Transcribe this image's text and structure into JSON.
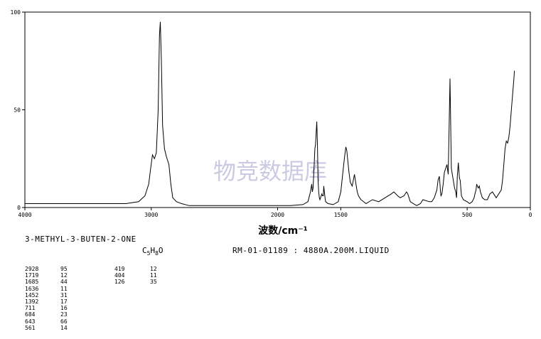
{
  "chart_data": {
    "type": "line",
    "title": "",
    "xlabel": "波数/cm⁻¹",
    "ylabel": "",
    "xlim": [
      4000,
      0
    ],
    "ylim": [
      0,
      100
    ],
    "x_ticks": [
      "4000",
      "3000",
      "2000",
      "1500",
      "500",
      "0"
    ],
    "y_ticks": [
      "100",
      "50",
      "0"
    ],
    "watermark": "物竞数据库",
    "series": [
      {
        "x": [
          4000,
          3200,
          3100,
          3050,
          3020,
          3005,
          2990,
          2975,
          2960,
          2945,
          2935,
          2928,
          2920,
          2910,
          2895,
          2880,
          2860,
          2845,
          2830,
          2800,
          2760,
          2700,
          2500,
          2200,
          1900,
          1800,
          1760,
          1740,
          1730,
          1725,
          1719,
          1712,
          1705,
          1700,
          1690,
          1685,
          1680,
          1675,
          1670,
          1665,
          1660,
          1655,
          1650,
          1645,
          1638,
          1635,
          1630,
          1625,
          1620,
          1600,
          1560,
          1520,
          1500,
          1485,
          1470,
          1460,
          1452,
          1445,
          1435,
          1425,
          1410,
          1392,
          1380,
          1370,
          1360,
          1350,
          1340,
          1300,
          1250,
          1200,
          1150,
          1100,
          1080,
          1050,
          1030,
          1000,
          980,
          970,
          960,
          950,
          900,
          870,
          850,
          800,
          780,
          760,
          740,
          730,
          720,
          715,
          711,
          707,
          700,
          690,
          680,
          660,
          650,
          643,
          636,
          625,
          600,
          590,
          584,
          578,
          570,
          561,
          555,
          545,
          530,
          500,
          480,
          460,
          445,
          438,
          430,
          425,
          419,
          412,
          404,
          395,
          380,
          360,
          340,
          320,
          300,
          290,
          270,
          250,
          230,
          220,
          210,
          200,
          190,
          180,
          170,
          160,
          150,
          140,
          130,
          126
        ],
        "y": [
          2,
          2,
          3,
          6,
          12,
          20,
          27,
          25,
          28,
          50,
          88,
          95,
          75,
          42,
          30,
          26,
          22,
          12,
          5,
          3,
          2,
          1,
          1,
          1,
          1,
          1.5,
          3,
          8,
          12,
          8,
          10,
          20,
          30,
          32,
          44,
          33,
          14,
          8,
          5,
          4,
          5,
          6,
          7,
          6,
          6,
          11,
          8,
          5,
          3,
          2,
          1.5,
          3,
          8,
          17,
          26,
          31,
          29,
          24,
          18,
          13,
          11,
          17,
          12,
          8,
          6,
          5,
          4,
          2,
          4,
          3,
          5,
          7,
          8,
          6,
          5,
          6,
          8,
          7,
          5,
          3,
          1,
          2,
          4,
          3,
          3,
          5,
          9,
          14,
          16,
          12,
          8,
          6,
          7,
          12,
          18,
          22,
          17,
          40,
          66,
          20,
          10,
          8,
          5,
          16,
          23,
          15,
          14,
          6,
          4,
          3,
          2,
          3,
          5,
          7,
          9,
          12,
          11,
          10,
          11,
          8,
          5,
          4,
          4,
          7,
          8,
          7,
          5,
          7,
          9,
          14,
          22,
          30,
          34,
          33,
          36,
          42,
          50,
          58,
          66,
          70
        ]
      }
    ]
  },
  "compound_name": "3-METHYL-3-BUTEN-2-ONE",
  "formula": {
    "c": "C",
    "c_n": "5",
    "h": "H",
    "h_n": "8",
    "o": "O"
  },
  "sample_info": "RM-01-01189 : 4880A.200M.LIQUID",
  "peak_table_1": [
    {
      "wn": "2928",
      "i": "95"
    },
    {
      "wn": "1719",
      "i": "12"
    },
    {
      "wn": "1685",
      "i": "44"
    },
    {
      "wn": "1636",
      "i": "11"
    },
    {
      "wn": "1452",
      "i": "31"
    },
    {
      "wn": "1392",
      "i": "17"
    },
    {
      "wn": "711",
      "i": "16"
    },
    {
      "wn": "684",
      "i": "23"
    },
    {
      "wn": "643",
      "i": "66"
    },
    {
      "wn": "561",
      "i": "14"
    }
  ],
  "peak_table_2": [
    {
      "wn": "419",
      "i": "12"
    },
    {
      "wn": "404",
      "i": "11"
    },
    {
      "wn": "126",
      "i": "35"
    }
  ]
}
